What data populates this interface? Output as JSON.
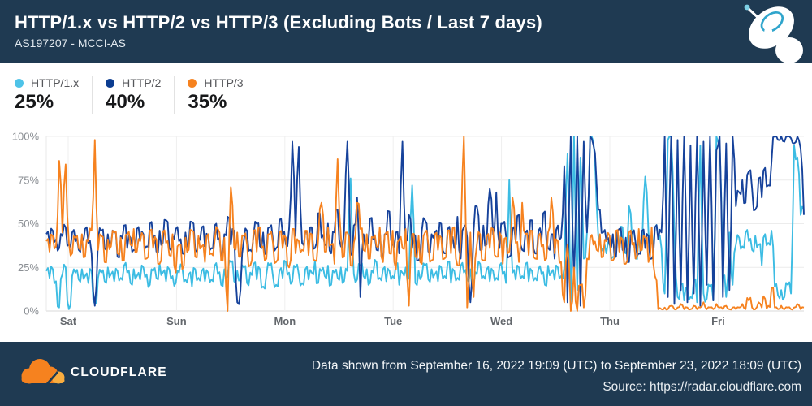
{
  "header": {
    "title": "HTTP/1.x vs HTTP/2 vs HTTP/3 (Excluding Bots / Last 7 days)",
    "subtitle": "AS197207 - MCCI-AS"
  },
  "legend": {
    "items": [
      {
        "label": "HTTP/1.x",
        "value": "25%",
        "color": "#4EC3E8"
      },
      {
        "label": "HTTP/2",
        "value": "40%",
        "color": "#0C3D91"
      },
      {
        "label": "HTTP/3",
        "value": "35%",
        "color": "#F6821F"
      }
    ]
  },
  "chart_data": {
    "type": "line",
    "title": "HTTP/1.x vs HTTP/2 vs HTTP/3 share over last 7 days",
    "x_labels": [
      "Sat",
      "Sun",
      "Mon",
      "Tue",
      "Wed",
      "Thu",
      "Fri"
    ],
    "y_ticks": [
      "0%",
      "25%",
      "50%",
      "75%",
      "100%"
    ],
    "ylim": [
      0,
      100
    ],
    "grid": true,
    "legend_position": "top",
    "series": [
      {
        "name": "HTTP/1.x",
        "color": "#3CBCE3",
        "values": [
          23,
          19,
          24,
          17,
          2,
          21,
          25,
          1,
          20,
          22,
          18,
          24,
          20,
          16,
          23,
          4,
          19,
          22,
          17,
          25,
          21,
          17,
          23,
          19,
          26,
          22,
          16,
          24,
          20,
          18,
          25,
          21,
          15,
          23,
          19,
          27,
          22,
          17,
          24,
          20,
          16,
          22,
          25,
          18,
          21,
          14,
          24,
          19,
          23,
          17,
          22,
          18,
          26,
          21,
          15,
          24,
          20,
          28,
          17,
          23,
          19,
          25,
          16,
          22,
          27,
          18,
          24,
          14,
          21,
          26,
          20,
          15,
          23,
          19,
          28,
          22,
          17,
          25,
          21,
          16,
          24,
          18,
          22,
          29,
          16,
          23,
          20,
          26,
          15,
          22,
          19,
          25,
          17,
          23,
          76,
          21,
          18,
          26,
          20,
          24,
          16,
          22,
          28,
          19,
          24,
          17,
          23,
          20,
          27,
          15,
          22,
          25,
          19,
          72,
          16,
          23,
          20,
          26,
          18,
          24,
          21,
          17,
          25,
          20,
          28,
          16,
          23,
          19,
          26,
          22,
          18,
          24,
          15,
          21,
          27,
          20,
          24,
          17,
          23,
          19,
          26,
          21,
          16,
          75,
          22,
          18,
          25,
          20,
          27,
          17,
          23,
          19,
          24,
          21,
          15,
          26,
          22,
          18,
          25,
          20,
          25,
          90,
          5,
          100,
          12,
          88,
          30,
          45,
          100,
          97,
          60,
          40,
          36,
          33,
          38,
          31,
          44,
          36,
          48,
          33,
          60,
          38,
          30,
          43,
          35,
          77,
          45,
          39,
          48,
          42,
          36,
          10,
          98,
          100,
          45,
          8,
          15,
          6,
          12,
          8,
          18,
          5,
          95,
          10,
          7,
          14,
          6,
          100,
          96,
          20,
          8,
          45,
          15,
          38,
          42,
          37,
          45,
          40,
          35,
          43,
          38,
          26,
          44,
          39,
          46,
          14,
          9,
          12,
          8,
          15,
          10,
          95,
          88,
          55,
          58
        ]
      },
      {
        "name": "HTTP/2",
        "color": "#16429B",
        "values": [
          44,
          39,
          46,
          41,
          36,
          43,
          48,
          38,
          45,
          40,
          35,
          42,
          47,
          39,
          33,
          3,
          41,
          46,
          36,
          44,
          38,
          45,
          31,
          43,
          49,
          36,
          42,
          35,
          47,
          40,
          44,
          37,
          50,
          42,
          34,
          46,
          39,
          52,
          36,
          43,
          47,
          40,
          33,
          45,
          38,
          51,
          35,
          42,
          48,
          37,
          43,
          36,
          49,
          41,
          32,
          44,
          54,
          38,
          46,
          5,
          12,
          40,
          46,
          35,
          43,
          50,
          37,
          45,
          33,
          48,
          41,
          36,
          52,
          44,
          38,
          47,
          97,
          43,
          94,
          39,
          45,
          34,
          48,
          36,
          56,
          42,
          38,
          50,
          33,
          45,
          58,
          37,
          46,
          97,
          32,
          49,
          65,
          8,
          44,
          39,
          53,
          41,
          35,
          47,
          30,
          44,
          57,
          38,
          45,
          33,
          97,
          40,
          55,
          36,
          43,
          29,
          46,
          52,
          34,
          44,
          45,
          38,
          50,
          33,
          47,
          41,
          36,
          54,
          30,
          48,
          42,
          5,
          46,
          60,
          35,
          49,
          38,
          70,
          44,
          68,
          36,
          50,
          43,
          31,
          47,
          40,
          55,
          35,
          45,
          38,
          52,
          33,
          46,
          41,
          57,
          36,
          44,
          30,
          49,
          42,
          83,
          5,
          100,
          18,
          100,
          3,
          97,
          45,
          100,
          95,
          72,
          58,
          45,
          40,
          38,
          44,
          31,
          47,
          35,
          42,
          28,
          45,
          39,
          33,
          46,
          36,
          43,
          30,
          48,
          41,
          45,
          100,
          8,
          100,
          4,
          98,
          12,
          100,
          5,
          95,
          10,
          100,
          3,
          97,
          15,
          100,
          6,
          92,
          100,
          8,
          96,
          12,
          100,
          60,
          68,
          75,
          62,
          80,
          70,
          58,
          76,
          65,
          82,
          72,
          85,
          100,
          98,
          100,
          97,
          100,
          99,
          96,
          100,
          93,
          55
        ]
      },
      {
        "name": "HTTP/3",
        "color": "#F6821F",
        "values": [
          40,
          34,
          43,
          37,
          86,
          45,
          84,
          39,
          33,
          42,
          36,
          44,
          31,
          40,
          46,
          98,
          35,
          43,
          28,
          41,
          37,
          45,
          33,
          42,
          29,
          44,
          38,
          47,
          34,
          40,
          43,
          30,
          46,
          36,
          41,
          27,
          45,
          39,
          32,
          44,
          22,
          38,
          24,
          42,
          35,
          46,
          31,
          43,
          37,
          28,
          44,
          33,
          40,
          47,
          29,
          42,
          0,
          71,
          36,
          45,
          31,
          43,
          38,
          26,
          46,
          34,
          48,
          37,
          30,
          44,
          39,
          28,
          45,
          36,
          42,
          25,
          47,
          33,
          40,
          35,
          46,
          32,
          44,
          29,
          41,
          62,
          34,
          48,
          38,
          27,
          87,
          43,
          31,
          45,
          26,
          39,
          62,
          47,
          35,
          44,
          30,
          42,
          37,
          48,
          28,
          45,
          33,
          46,
          24,
          41,
          36,
          47,
          3,
          44,
          31,
          43,
          27,
          45,
          38,
          29,
          44,
          35,
          42,
          30,
          46,
          33,
          48,
          26,
          40,
          100,
          2,
          45,
          8,
          38,
          44,
          29,
          43,
          36,
          47,
          31,
          45,
          27,
          42,
          34,
          65,
          39,
          28,
          62,
          44,
          32,
          46,
          30,
          43,
          37,
          29,
          45,
          65,
          33,
          40,
          28,
          5,
          38,
          0,
          25,
          0,
          15,
          2,
          30,
          42,
          38,
          35,
          44,
          31,
          40,
          43,
          29,
          46,
          34,
          41,
          27,
          45,
          38,
          30,
          47,
          35,
          42,
          28,
          48,
          20,
          1,
          1,
          2,
          1,
          3,
          1,
          2,
          4,
          1,
          2,
          1,
          3,
          1,
          2,
          5,
          1,
          2,
          1,
          4,
          2,
          1,
          3,
          1,
          2,
          1,
          2,
          4,
          1,
          6,
          2,
          1,
          5,
          2,
          7,
          3,
          13,
          2,
          1,
          3,
          1,
          2,
          1,
          2,
          4,
          1,
          2
        ]
      }
    ]
  },
  "footer": {
    "brand": "CLOUDFLARE",
    "line1": "Data shown from September 16, 2022 19:09 (UTC) to September 23, 2022 18:09 (UTC)",
    "line2": "Source: https://radar.cloudflare.com"
  }
}
